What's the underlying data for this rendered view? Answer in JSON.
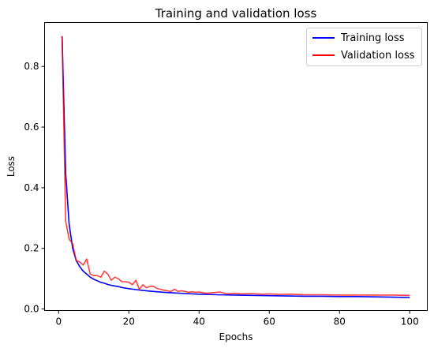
{
  "chart_data": {
    "type": "line",
    "title": "Training and validation loss",
    "xlabel": "Epochs",
    "ylabel": "Loss",
    "xlim": [
      -4,
      105
    ],
    "ylim": [
      -0.005,
      0.945
    ],
    "xticks": [
      0,
      20,
      40,
      60,
      80,
      100
    ],
    "yticks": [
      0.0,
      0.2,
      0.4,
      0.6,
      0.8
    ],
    "ytick_labels": [
      "0.0",
      "0.2",
      "0.4",
      "0.6",
      "0.8"
    ],
    "legend_position": "top-right",
    "grid": false,
    "series": [
      {
        "name": "Training loss",
        "color": "#0000ff",
        "x": [
          1,
          2,
          3,
          4,
          5,
          6,
          7,
          8,
          9,
          10,
          11,
          12,
          13,
          14,
          15,
          16,
          17,
          18,
          19,
          20,
          22,
          24,
          26,
          28,
          30,
          33,
          36,
          40,
          45,
          50,
          55,
          60,
          65,
          70,
          75,
          80,
          85,
          90,
          95,
          100
        ],
        "y": [
          0.9,
          0.45,
          0.28,
          0.2,
          0.16,
          0.14,
          0.125,
          0.115,
          0.105,
          0.098,
          0.093,
          0.088,
          0.085,
          0.081,
          0.078,
          0.076,
          0.074,
          0.071,
          0.069,
          0.067,
          0.064,
          0.061,
          0.059,
          0.057,
          0.055,
          0.053,
          0.051,
          0.049,
          0.047,
          0.046,
          0.045,
          0.044,
          0.043,
          0.042,
          0.042,
          0.041,
          0.041,
          0.04,
          0.039,
          0.038
        ]
      },
      {
        "name": "Validation loss",
        "color": "#ff0000",
        "x": [
          1,
          2,
          3,
          4,
          5,
          6,
          7,
          8,
          9,
          10,
          11,
          12,
          13,
          14,
          15,
          16,
          17,
          18,
          19,
          20,
          21,
          22,
          23,
          24,
          25,
          26,
          27,
          28,
          29,
          30,
          31,
          32,
          33,
          34,
          35,
          36,
          37,
          38,
          39,
          40,
          42,
          44,
          46,
          48,
          50,
          52,
          55,
          58,
          60,
          63,
          66,
          70,
          75,
          80,
          85,
          90,
          95,
          99,
          100
        ],
        "y": [
          0.9,
          0.29,
          0.23,
          0.215,
          0.16,
          0.155,
          0.145,
          0.165,
          0.115,
          0.11,
          0.11,
          0.105,
          0.125,
          0.115,
          0.095,
          0.105,
          0.1,
          0.09,
          0.09,
          0.088,
          0.08,
          0.095,
          0.065,
          0.08,
          0.07,
          0.075,
          0.075,
          0.068,
          0.065,
          0.062,
          0.06,
          0.058,
          0.065,
          0.058,
          0.06,
          0.058,
          0.055,
          0.057,
          0.055,
          0.056,
          0.052,
          0.054,
          0.056,
          0.05,
          0.052,
          0.05,
          0.051,
          0.049,
          0.05,
          0.048,
          0.049,
          0.047,
          0.047,
          0.046,
          0.046,
          0.046,
          0.046,
          0.045,
          0.045
        ]
      }
    ]
  }
}
